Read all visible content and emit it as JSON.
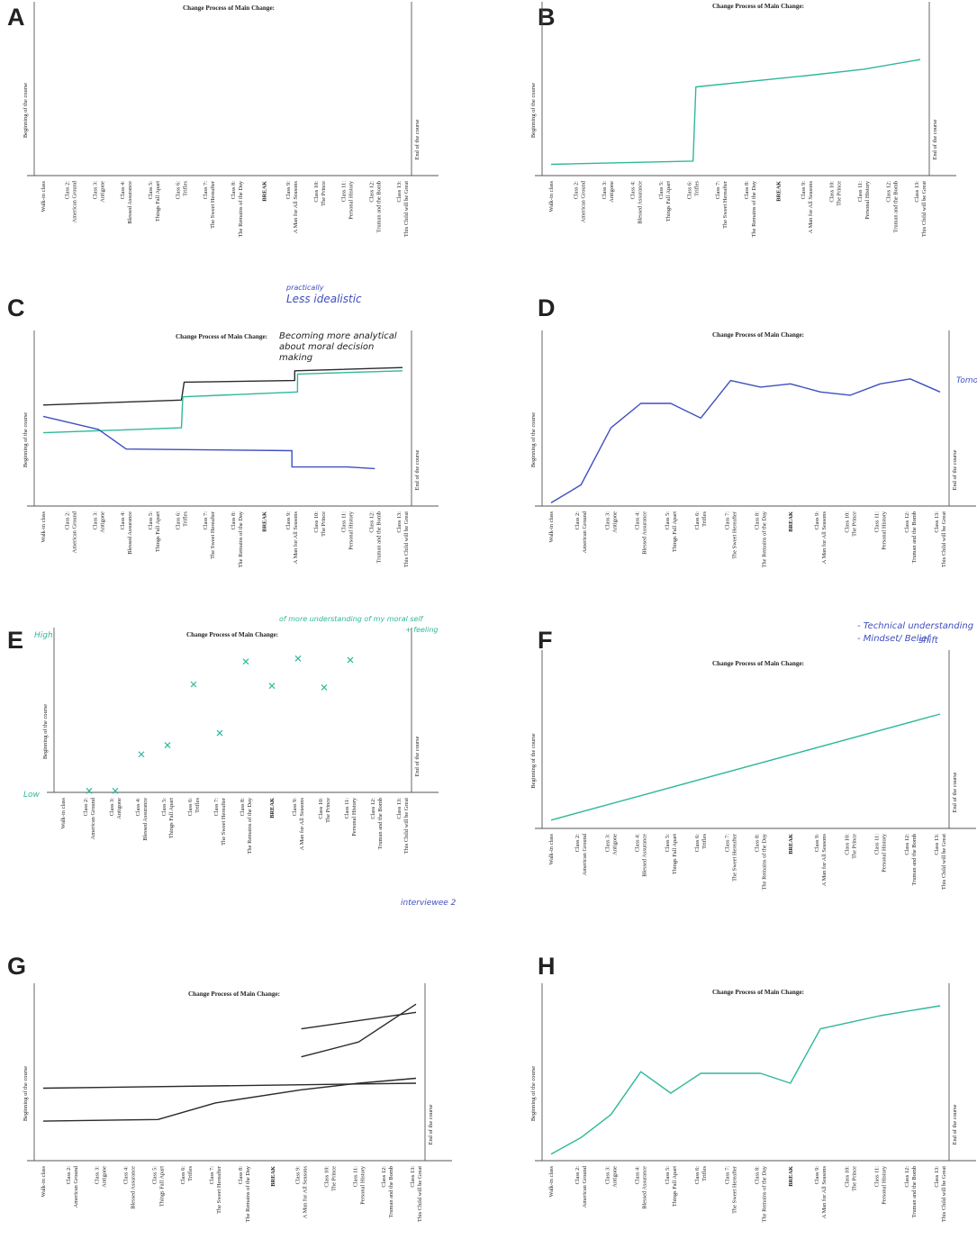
{
  "figure": {
    "chart_title": "Change Process of Main Change:",
    "classes": [
      [
        "Walk-in class"
      ],
      [
        "Class 2:",
        "American Ground"
      ],
      [
        "Class 3:",
        "Antigone"
      ],
      [
        "Class 4:",
        "Blessed Assurance"
      ],
      [
        "Class 5:",
        "Things Fall Apart"
      ],
      [
        "Class 6:",
        "Trifles"
      ],
      [
        "Class 7:",
        "The Sweet Hereafter"
      ],
      [
        "Class 8:",
        "The Remains of the Day"
      ],
      [
        "BREAK"
      ],
      [
        "Class 9:",
        "A Man for All Seasons"
      ],
      [
        "Class 10:",
        "The Prince"
      ],
      [
        "Class 11:",
        "Personal History"
      ],
      [
        "Class 12:",
        "Truman and the Bomb"
      ],
      [
        "Class 13:",
        "This Child will be Great"
      ]
    ],
    "y_start_label": "Beginning of the course",
    "y_end_label": "End of the course",
    "colors": {
      "teal": "#2fb89a",
      "black": "#2a2a2a",
      "blue": "#3f4fbf",
      "ink": "#222222"
    }
  },
  "panels": [
    {
      "letter": "A",
      "annotations": []
    },
    {
      "letter": "B",
      "annotations": []
    },
    {
      "letter": "C",
      "annotations": [
        "practically",
        "Less idealistic",
        "Becoming more analytical",
        "about moral decision",
        "making"
      ]
    },
    {
      "letter": "D",
      "annotations": [
        "Tomorr"
      ]
    },
    {
      "letter": "E",
      "annotations": [
        "High",
        "Low",
        "of more understanding of my moral self",
        "+ feeling",
        "interviewee 2"
      ]
    },
    {
      "letter": "F",
      "annotations": [
        "- Technical understanding",
        "- Mindset/ Belief",
        "shift"
      ]
    },
    {
      "letter": "G",
      "annotations": []
    },
    {
      "letter": "H",
      "annotations": []
    }
  ],
  "chart_data": [
    {
      "panel": "A",
      "type": "line",
      "x_axis": "classes",
      "y_range": [
        0,
        10
      ],
      "series": []
    },
    {
      "panel": "B",
      "type": "line",
      "x_axis": "classes",
      "y_range": [
        0,
        10
      ],
      "series": [
        {
          "color": "teal",
          "points": [
            [
              0,
              0.7
            ],
            [
              5,
              0.9
            ],
            [
              5.1,
              5.5
            ],
            [
              9,
              6.2
            ],
            [
              11,
              6.6
            ],
            [
              13,
              7.2
            ]
          ]
        }
      ]
    },
    {
      "panel": "C",
      "type": "line",
      "x_axis": "classes",
      "y_range": [
        0,
        10
      ],
      "series": [
        {
          "color": "black",
          "points": [
            [
              0,
              6.2
            ],
            [
              5,
              6.5
            ],
            [
              5.1,
              7.6
            ],
            [
              9.1,
              7.7
            ],
            [
              9.1,
              8.3
            ],
            [
              13,
              8.5
            ]
          ]
        },
        {
          "color": "teal",
          "points": [
            [
              0,
              4.5
            ],
            [
              5,
              4.8
            ],
            [
              5.05,
              6.7
            ],
            [
              9.2,
              7.0
            ],
            [
              9.2,
              8.1
            ],
            [
              13,
              8.3
            ]
          ]
        },
        {
          "color": "blue",
          "points": [
            [
              0,
              5.5
            ],
            [
              2,
              4.7
            ],
            [
              3,
              3.5
            ],
            [
              9,
              3.4
            ],
            [
              9,
              2.4
            ],
            [
              11,
              2.4
            ],
            [
              12,
              2.3
            ]
          ]
        }
      ]
    },
    {
      "panel": "D",
      "type": "line",
      "x_axis": "classes",
      "y_range": [
        0,
        10
      ],
      "series": [
        {
          "color": "blue",
          "points": [
            [
              0,
              0.2
            ],
            [
              1,
              1.3
            ],
            [
              2,
              4.8
            ],
            [
              3,
              6.3
            ],
            [
              4,
              6.3
            ],
            [
              5,
              5.4
            ],
            [
              6,
              7.7
            ],
            [
              7,
              7.3
            ],
            [
              8,
              7.5
            ],
            [
              9,
              7.0
            ],
            [
              10,
              6.8
            ],
            [
              11,
              7.5
            ],
            [
              12,
              7.8
            ],
            [
              13,
              7.0
            ]
          ]
        }
      ]
    },
    {
      "panel": "E",
      "type": "scatter",
      "x_axis": "classes",
      "y_range": [
        0,
        10
      ],
      "series": [
        {
          "color": "teal",
          "points": [
            [
              1,
              0.1
            ],
            [
              2,
              0.1
            ],
            [
              3,
              2.5
            ],
            [
              4,
              3.1
            ],
            [
              5,
              7.1
            ],
            [
              6,
              3.9
            ],
            [
              7,
              8.6
            ],
            [
              8,
              7.0
            ],
            [
              9,
              8.8
            ],
            [
              10,
              6.9
            ],
            [
              11,
              8.7
            ]
          ]
        }
      ]
    },
    {
      "panel": "F",
      "type": "line",
      "x_axis": "classes",
      "y_range": [
        0,
        10
      ],
      "series": [
        {
          "color": "teal",
          "points": [
            [
              0,
              0.5
            ],
            [
              13,
              6.9
            ]
          ]
        }
      ]
    },
    {
      "panel": "G",
      "type": "line",
      "x_axis": "classes",
      "y_range": [
        0,
        10
      ],
      "series": [
        {
          "color": "black",
          "points": [
            [
              0,
              2.4
            ],
            [
              4,
              2.5
            ],
            [
              6,
              3.5
            ],
            [
              9,
              4.3
            ],
            [
              11,
              4.7
            ],
            [
              13,
              5.0
            ]
          ]
        },
        {
          "color": "black",
          "points": [
            [
              0,
              4.4
            ],
            [
              13,
              4.7
            ]
          ]
        },
        {
          "color": "black",
          "points": [
            [
              9,
              8.0
            ],
            [
              13,
              9.0
            ]
          ]
        },
        {
          "color": "black",
          "points": [
            [
              9,
              6.3
            ],
            [
              11,
              7.2
            ],
            [
              13,
              9.5
            ]
          ]
        }
      ]
    },
    {
      "panel": "H",
      "type": "line",
      "x_axis": "classes",
      "y_range": [
        0,
        10
      ],
      "series": [
        {
          "color": "teal",
          "points": [
            [
              0,
              0.4
            ],
            [
              1,
              1.4
            ],
            [
              2,
              2.8
            ],
            [
              3,
              5.4
            ],
            [
              4,
              4.1
            ],
            [
              5,
              5.3
            ],
            [
              6,
              5.3
            ],
            [
              7,
              5.3
            ],
            [
              8,
              4.7
            ],
            [
              9,
              8.0
            ],
            [
              10,
              8.4
            ],
            [
              11,
              8.8
            ],
            [
              13,
              9.4
            ]
          ]
        }
      ]
    }
  ]
}
